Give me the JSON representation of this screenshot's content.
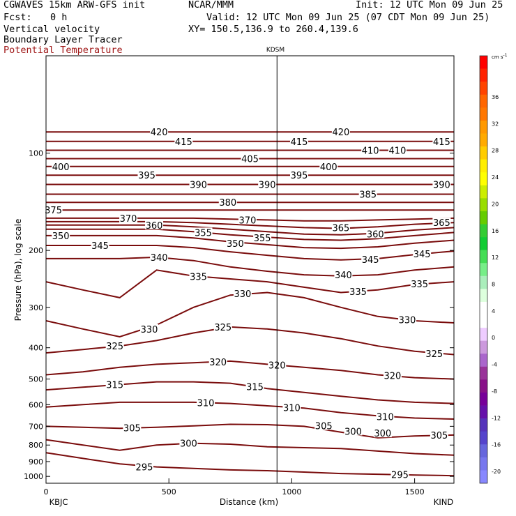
{
  "header": {
    "model": "CGWAVES 15km ARW-GFS init",
    "org": "NCAR/MMM",
    "init": "Init: 12 UTC Mon 09 Jun 25",
    "fcst_label": "Fcst:",
    "fcst_value": "0 h",
    "valid": "Valid: 12 UTC Mon 09 Jun 25 (07 CDT Mon 09 Jun 25)",
    "field1": "Vertical velocity",
    "xy": "XY= 150.5,136.9 to 260.4,139.6",
    "field2": "Boundary Layer Tracer",
    "field3": "Potential Temperature",
    "field3_color": "#a01818"
  },
  "chart_data": {
    "type": "line",
    "title": "",
    "xlabel": "Distance (km)",
    "ylabel": "Pressure (hPa), log scale",
    "x_ticks": [
      0,
      500,
      1000,
      1500
    ],
    "xlim": [
      0,
      1660
    ],
    "y_scale": "log",
    "y_ticks": [
      100,
      200,
      300,
      400,
      500,
      600,
      700,
      800,
      900,
      1000
    ],
    "ylim": [
      1050,
      50
    ],
    "station_top": "KDSM",
    "station_top_x": 940,
    "station_left": "KBJC",
    "station_right": "KIND",
    "contour_color": "#7a0c0c",
    "series": [
      {
        "label": "295",
        "x": [
          0,
          150,
          300,
          450,
          600,
          750,
          900,
          1050,
          1200,
          1350,
          1500,
          1660
        ],
        "y": [
          845,
          880,
          915,
          935,
          945,
          955,
          960,
          970,
          980,
          985,
          990,
          995
        ]
      },
      {
        "label": "300",
        "x": [
          0,
          150,
          300,
          450,
          600,
          750,
          900,
          1050,
          1200,
          1350,
          1500,
          1660
        ],
        "y": [
          770,
          800,
          830,
          800,
          790,
          795,
          810,
          815,
          820,
          835,
          850,
          860
        ]
      },
      {
        "label": "305",
        "x": [
          0,
          150,
          300,
          450,
          600,
          750,
          900,
          1050,
          1200,
          1350,
          1500,
          1660
        ],
        "y": [
          700,
          705,
          710,
          705,
          698,
          690,
          692,
          700,
          730,
          760,
          750,
          745
        ]
      },
      {
        "label": "310",
        "x": [
          0,
          150,
          300,
          450,
          600,
          750,
          900,
          1050,
          1200,
          1350,
          1500,
          1660
        ],
        "y": [
          610,
          600,
          590,
          590,
          590,
          595,
          605,
          615,
          635,
          650,
          660,
          665
        ]
      },
      {
        "label": "315",
        "x": [
          0,
          150,
          300,
          450,
          600,
          750,
          900,
          1050,
          1200,
          1350,
          1500,
          1660
        ],
        "y": [
          540,
          530,
          520,
          510,
          510,
          515,
          535,
          550,
          565,
          580,
          590,
          595
        ]
      },
      {
        "label": "320",
        "x": [
          0,
          150,
          300,
          450,
          600,
          750,
          900,
          1050,
          1200,
          1350,
          1500,
          1660
        ],
        "y": [
          485,
          475,
          460,
          450,
          445,
          440,
          450,
          460,
          470,
          485,
          495,
          500
        ]
      },
      {
        "label": "325",
        "x": [
          0,
          150,
          300,
          450,
          600,
          750,
          900,
          1050,
          1200,
          1350,
          1500,
          1660
        ],
        "y": [
          415,
          405,
          395,
          380,
          360,
          345,
          350,
          360,
          375,
          395,
          410,
          420
        ]
      },
      {
        "label": "330",
        "x": [
          0,
          150,
          300,
          450,
          600,
          750,
          900,
          1050,
          1200,
          1350,
          1500,
          1660
        ],
        "y": [
          330,
          350,
          370,
          340,
          300,
          275,
          270,
          280,
          300,
          320,
          330,
          335
        ]
      },
      {
        "label": "335",
        "x": [
          0,
          150,
          300,
          450,
          600,
          750,
          900,
          1050,
          1200,
          1350,
          1500,
          1660
        ],
        "y": [
          250,
          265,
          280,
          230,
          240,
          245,
          250,
          260,
          270,
          265,
          255,
          250
        ]
      },
      {
        "label": "340",
        "x": [
          0,
          150,
          300,
          450,
          600,
          750,
          900,
          1050,
          1200,
          1350,
          1500,
          1660
        ],
        "y": [
          212,
          212,
          212,
          210,
          215,
          225,
          232,
          238,
          240,
          238,
          230,
          225
        ]
      },
      {
        "label": "345",
        "x": [
          0,
          150,
          300,
          450,
          600,
          750,
          900,
          1050,
          1200,
          1350,
          1500,
          1660
        ],
        "y": [
          193,
          193,
          193,
          193,
          196,
          202,
          207,
          212,
          214,
          212,
          206,
          201
        ]
      },
      {
        "label": "350",
        "x": [
          0,
          150,
          300,
          450,
          600,
          750,
          900,
          1050,
          1200,
          1350,
          1500,
          1660
        ],
        "y": [
          180,
          180,
          180,
          180,
          183,
          188,
          192,
          196,
          197,
          195,
          190,
          186
        ]
      },
      {
        "label": "355",
        "x": [
          0,
          150,
          300,
          450,
          600,
          750,
          900,
          1050,
          1200,
          1350,
          1500,
          1660
        ],
        "y": [
          172,
          172,
          172,
          172,
          175,
          179,
          182,
          185,
          186,
          184,
          180,
          176
        ]
      },
      {
        "label": "360",
        "x": [
          0,
          150,
          300,
          450,
          600,
          750,
          900,
          1050,
          1200,
          1350,
          1500,
          1660
        ],
        "y": [
          167,
          167,
          167,
          167,
          169,
          172,
          175,
          178,
          179,
          177,
          173,
          170
        ]
      },
      {
        "label": "365",
        "x": [
          0,
          150,
          300,
          450,
          600,
          750,
          900,
          1050,
          1200,
          1350,
          1500,
          1660
        ],
        "y": [
          163,
          163,
          163,
          163,
          164,
          166,
          168,
          170,
          171,
          169,
          166,
          164
        ]
      },
      {
        "label": "370",
        "x": [
          0,
          150,
          300,
          450,
          600,
          750,
          900,
          1050,
          1200,
          1350,
          1500,
          1660
        ],
        "y": [
          159,
          159,
          159,
          159,
          159,
          160,
          161,
          162,
          162,
          161,
          160,
          159
        ]
      },
      {
        "label": "375",
        "x": [
          0,
          150,
          300,
          450,
          600,
          750,
          900,
          1050,
          1200,
          1350,
          1500,
          1660
        ],
        "y": [
          150,
          150,
          150,
          150,
          150,
          150,
          150,
          150,
          150,
          150,
          150,
          150
        ]
      },
      {
        "label": "380",
        "x": [
          0,
          150,
          300,
          450,
          600,
          750,
          900,
          1050,
          1200,
          1350,
          1500,
          1660
        ],
        "y": [
          142,
          142,
          142,
          142,
          142,
          142,
          142,
          142,
          142,
          142,
          142,
          142
        ]
      },
      {
        "label": "385",
        "x": [
          0,
          150,
          300,
          450,
          600,
          750,
          900,
          1050,
          1200,
          1350,
          1500,
          1660
        ],
        "y": [
          134,
          134,
          134,
          134,
          134,
          134,
          134,
          134,
          134,
          134,
          134,
          134
        ]
      },
      {
        "label": "390",
        "x": [
          0,
          150,
          300,
          450,
          600,
          750,
          900,
          1050,
          1200,
          1350,
          1500,
          1660
        ],
        "y": [
          125,
          125,
          125,
          125,
          125,
          125,
          125,
          125,
          125,
          125,
          125,
          125
        ]
      },
      {
        "label": "395",
        "x": [
          0,
          150,
          300,
          450,
          600,
          750,
          900,
          1050,
          1200,
          1350,
          1500,
          1660
        ],
        "y": [
          117,
          117,
          117,
          117,
          117,
          117,
          117,
          117,
          117,
          117,
          117,
          117
        ]
      },
      {
        "label": "400",
        "x": [
          0,
          150,
          300,
          450,
          600,
          750,
          900,
          1050,
          1200,
          1350,
          1500,
          1660
        ],
        "y": [
          110,
          110,
          110,
          110,
          110,
          110,
          110,
          110,
          110,
          110,
          110,
          110
        ]
      },
      {
        "label": "405",
        "x": [
          0,
          150,
          300,
          450,
          600,
          750,
          900,
          1050,
          1200,
          1350,
          1500,
          1660
        ],
        "y": [
          104,
          104,
          104,
          104,
          104,
          104,
          104,
          104,
          104,
          104,
          104,
          104
        ]
      },
      {
        "label": "410",
        "x": [
          0,
          150,
          300,
          450,
          600,
          750,
          900,
          1050,
          1200,
          1350,
          1500,
          1660
        ],
        "y": [
          98,
          98,
          98,
          98,
          98,
          98,
          98,
          98,
          98,
          98,
          98,
          98
        ]
      },
      {
        "label": "415",
        "x": [
          0,
          150,
          300,
          450,
          600,
          750,
          900,
          1050,
          1200,
          1350,
          1500,
          1660
        ],
        "y": [
          92,
          92,
          92,
          92,
          92,
          92,
          92,
          92,
          92,
          92,
          92,
          92
        ]
      },
      {
        "label": "420",
        "x": [
          0,
          150,
          300,
          450,
          600,
          750,
          900,
          1050,
          1200,
          1350,
          1500,
          1660
        ],
        "y": [
          86,
          86,
          86,
          86,
          86,
          86,
          86,
          86,
          86,
          86,
          86,
          86
        ]
      }
    ],
    "contour_labels": [
      {
        "text": "420",
        "x": 460,
        "p": 86
      },
      {
        "text": "420",
        "x": 1200,
        "p": 86
      },
      {
        "text": "415",
        "x": 560,
        "p": 92
      },
      {
        "text": "415",
        "x": 1030,
        "p": 92
      },
      {
        "text": "415",
        "x": 1610,
        "p": 92
      },
      {
        "text": "410",
        "x": 1320,
        "p": 98
      },
      {
        "text": "410",
        "x": 1430,
        "p": 98
      },
      {
        "text": "405",
        "x": 830,
        "p": 104
      },
      {
        "text": "400",
        "x": 60,
        "p": 110
      },
      {
        "text": "400",
        "x": 1150,
        "p": 110
      },
      {
        "text": "395",
        "x": 410,
        "p": 117
      },
      {
        "text": "395",
        "x": 1030,
        "p": 117
      },
      {
        "text": "390",
        "x": 620,
        "p": 125
      },
      {
        "text": "390",
        "x": 900,
        "p": 125
      },
      {
        "text": "390",
        "x": 1610,
        "p": 125
      },
      {
        "text": "385",
        "x": 1310,
        "p": 134
      },
      {
        "text": "380",
        "x": 740,
        "p": 142
      },
      {
        "text": "375",
        "x": 30,
        "p": 150
      },
      {
        "text": "370",
        "x": 335,
        "p": 159
      },
      {
        "text": "370",
        "x": 820,
        "p": 161
      },
      {
        "text": "365",
        "x": 1200,
        "p": 170
      },
      {
        "text": "365",
        "x": 1610,
        "p": 164
      },
      {
        "text": "360",
        "x": 440,
        "p": 167
      },
      {
        "text": "360",
        "x": 1340,
        "p": 178
      },
      {
        "text": "355",
        "x": 640,
        "p": 176
      },
      {
        "text": "355",
        "x": 880,
        "p": 183
      },
      {
        "text": "350",
        "x": 60,
        "p": 180
      },
      {
        "text": "350",
        "x": 770,
        "p": 190
      },
      {
        "text": "345",
        "x": 220,
        "p": 193
      },
      {
        "text": "345",
        "x": 1320,
        "p": 213
      },
      {
        "text": "345",
        "x": 1530,
        "p": 205
      },
      {
        "text": "340",
        "x": 460,
        "p": 210
      },
      {
        "text": "340",
        "x": 1210,
        "p": 238
      },
      {
        "text": "335",
        "x": 620,
        "p": 241
      },
      {
        "text": "335",
        "x": 1270,
        "p": 268
      },
      {
        "text": "335",
        "x": 1520,
        "p": 254
      },
      {
        "text": "330",
        "x": 800,
        "p": 272
      },
      {
        "text": "330",
        "x": 1470,
        "p": 328
      },
      {
        "text": "330",
        "x": 420,
        "p": 350
      },
      {
        "text": "325",
        "x": 720,
        "p": 345
      },
      {
        "text": "325",
        "x": 280,
        "p": 395
      },
      {
        "text": "325",
        "x": 1580,
        "p": 417
      },
      {
        "text": "320",
        "x": 700,
        "p": 443
      },
      {
        "text": "320",
        "x": 940,
        "p": 452
      },
      {
        "text": "320",
        "x": 1410,
        "p": 488
      },
      {
        "text": "315",
        "x": 280,
        "p": 520
      },
      {
        "text": "315",
        "x": 850,
        "p": 528
      },
      {
        "text": "310",
        "x": 650,
        "p": 592
      },
      {
        "text": "310",
        "x": 1000,
        "p": 612
      },
      {
        "text": "310",
        "x": 1380,
        "p": 654
      },
      {
        "text": "305",
        "x": 350,
        "p": 708
      },
      {
        "text": "305",
        "x": 1130,
        "p": 697
      },
      {
        "text": "305",
        "x": 1600,
        "p": 745
      },
      {
        "text": "300",
        "x": 580,
        "p": 790
      },
      {
        "text": "300",
        "x": 1250,
        "p": 725
      },
      {
        "text": "300",
        "x": 1370,
        "p": 735
      },
      {
        "text": "295",
        "x": 400,
        "p": 935
      },
      {
        "text": "295",
        "x": 1440,
        "p": 987
      }
    ],
    "colorbar": {
      "unit": "cm s",
      "unit_exp": "-1",
      "labels": [
        "36",
        "32",
        "28",
        "24",
        "20",
        "16",
        "12",
        "8",
        "4",
        "0",
        "-4",
        "-8",
        "-12",
        "-16",
        "-20"
      ],
      "colors": [
        "#ff0000",
        "#ff2200",
        "#ff4400",
        "#ff6600",
        "#ff7700",
        "#ff9900",
        "#ffaa00",
        "#ffcc00",
        "#ffee00",
        "#ffff00",
        "#ccee00",
        "#99dd00",
        "#66cc00",
        "#33cc33",
        "#11cc33",
        "#44dd55",
        "#77ee88",
        "#aaeebb",
        "#ddffdd",
        "#ffffff",
        "#ffffff",
        "#eeccff",
        "#cc99dd",
        "#aa66cc",
        "#993399",
        "#881188",
        "#770099",
        "#6611aa",
        "#5533bb",
        "#5544cc",
        "#6666dd",
        "#7777ee",
        "#8888ff"
      ]
    }
  }
}
